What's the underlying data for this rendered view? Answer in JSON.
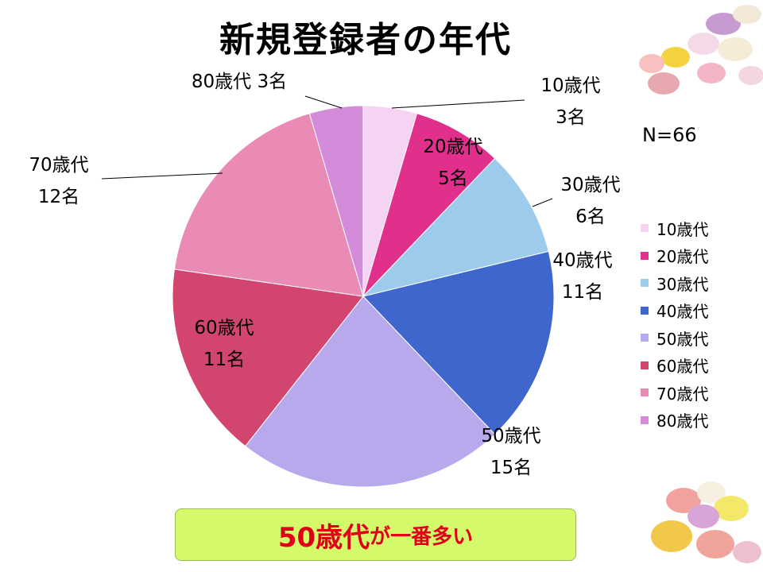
{
  "title": "新規登録者の年代",
  "n_label": "N=66",
  "callout": {
    "highlight": "50歳代",
    "rest": "が一番多い"
  },
  "colors": {
    "slices": [
      "#f5d3f3",
      "#e0308c",
      "#9ccbec",
      "#3e66cd",
      "#b8a9ec",
      "#d2456f",
      "#e98bb5",
      "#d48bd9"
    ],
    "callout_bg": "#d4fa6b",
    "callout_text": "#e0001a"
  },
  "chart_data": {
    "type": "pie",
    "title": "新規登録者の年代",
    "categories": [
      "10歳代",
      "20歳代",
      "30歳代",
      "40歳代",
      "50歳代",
      "60歳代",
      "70歳代",
      "80歳代"
    ],
    "values": [
      3,
      5,
      6,
      11,
      15,
      11,
      12,
      3
    ],
    "unit": "名",
    "value_labels": [
      "3名",
      "5名",
      "6名",
      "11名",
      "15名",
      "11名",
      "12名",
      "3名"
    ],
    "legend_position": "right"
  }
}
